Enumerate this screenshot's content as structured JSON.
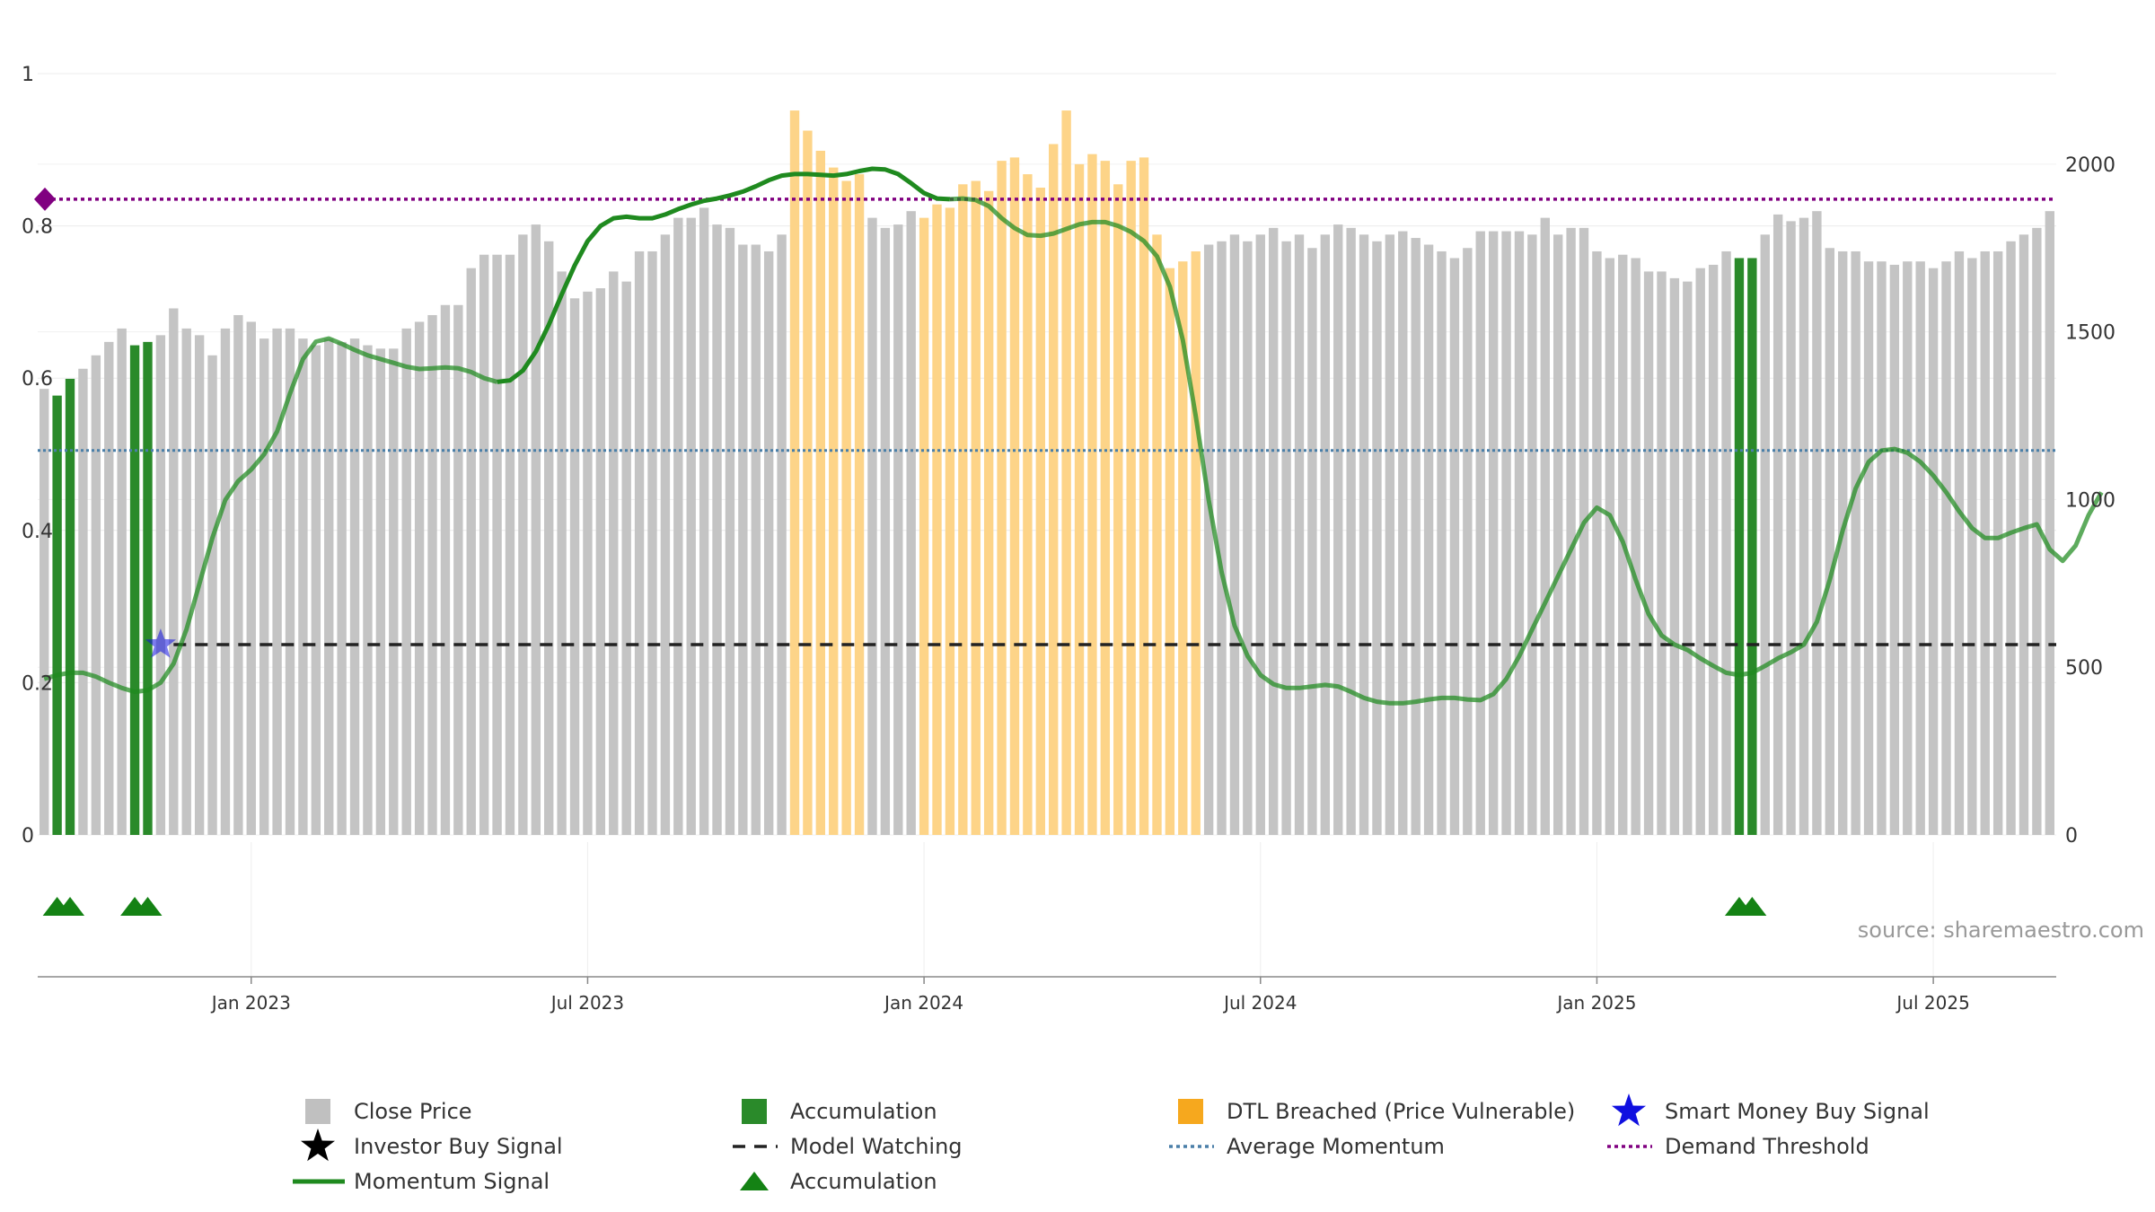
{
  "chart_data": {
    "type": "bar",
    "title": "",
    "source": "source: sharemaestro.com",
    "left_axis": {
      "ticks": [
        "0",
        "0.2",
        "0.4",
        "0.6",
        "0.8",
        "1"
      ],
      "ylim": [
        0,
        1
      ]
    },
    "right_axis": {
      "ticks": [
        "0",
        "500",
        "1000",
        "1500",
        "2000"
      ],
      "ylim": [
        0,
        2270
      ]
    },
    "x_ticks": [
      "Jan 2023",
      "Jul 2023",
      "Jan 2024",
      "Jul 2024",
      "Jan 2025",
      "Jul 2025"
    ],
    "x_tick_index": [
      16,
      42,
      68,
      94,
      120,
      146
    ],
    "prices": [
      1330,
      1310,
      1360,
      1390,
      1430,
      1470,
      1510,
      1460,
      1470,
      1490,
      1570,
      1510,
      1490,
      1430,
      1510,
      1550,
      1530,
      1480,
      1510,
      1510,
      1480,
      1460,
      1480,
      1470,
      1480,
      1460,
      1450,
      1450,
      1510,
      1530,
      1550,
      1580,
      1580,
      1690,
      1730,
      1730,
      1730,
      1790,
      1820,
      1770,
      1680,
      1600,
      1620,
      1630,
      1680,
      1650,
      1740,
      1740,
      1790,
      1840,
      1840,
      1870,
      1820,
      1810,
      1760,
      1760,
      1740,
      1790,
      2160,
      2100,
      2040,
      1990,
      1950,
      1970,
      1840,
      1810,
      1820,
      1860,
      1840,
      1880,
      1870,
      1940,
      1950,
      1920,
      2010,
      2020,
      1970,
      1930,
      2060,
      2160,
      2000,
      2030,
      2010,
      1940,
      2010,
      2020,
      1790,
      1690,
      1710,
      1740,
      1760,
      1770,
      1790,
      1770,
      1790,
      1810,
      1770,
      1790,
      1750,
      1790,
      1820,
      1810,
      1790,
      1770,
      1790,
      1800,
      1780,
      1760,
      1740,
      1720,
      1750,
      1800,
      1800,
      1800,
      1800,
      1790,
      1840,
      1790,
      1810,
      1810,
      1740,
      1720,
      1730,
      1720,
      1680,
      1680,
      1660,
      1650,
      1690,
      1700,
      1740,
      1720,
      1720,
      1790,
      1850,
      1830,
      1840,
      1860,
      1750,
      1740,
      1740,
      1710,
      1710,
      1700,
      1710,
      1710,
      1690,
      1710,
      1740,
      1720,
      1740,
      1740,
      1770,
      1790,
      1810,
      1860
    ],
    "bar_colors": {
      "close_price": "#c4c4c4",
      "accumulation": "#2a8a2a",
      "dtl_breached": "#fdd488"
    },
    "accumulation_bars": [
      1,
      2,
      7,
      8,
      131,
      132
    ],
    "dtl_breached_bars": [
      [
        58,
        63
      ],
      [
        68,
        89
      ]
    ],
    "momentum_signal": [
      0.205,
      0.21,
      0.213,
      0.213,
      0.208,
      0.2,
      0.193,
      0.188,
      0.19,
      0.2,
      0.225,
      0.27,
      0.33,
      0.39,
      0.44,
      0.465,
      0.48,
      0.5,
      0.53,
      0.58,
      0.625,
      0.648,
      0.652,
      0.645,
      0.637,
      0.63,
      0.625,
      0.62,
      0.615,
      0.612,
      0.613,
      0.614,
      0.613,
      0.608,
      0.6,
      0.595,
      0.597,
      0.61,
      0.635,
      0.67,
      0.71,
      0.748,
      0.78,
      0.8,
      0.81,
      0.812,
      0.81,
      0.81,
      0.815,
      0.822,
      0.828,
      0.833,
      0.836,
      0.84,
      0.845,
      0.852,
      0.86,
      0.866,
      0.868,
      0.868,
      0.867,
      0.866,
      0.868,
      0.872,
      0.875,
      0.874,
      0.868,
      0.856,
      0.843,
      0.836,
      0.835,
      0.836,
      0.834,
      0.826,
      0.81,
      0.797,
      0.788,
      0.787,
      0.79,
      0.796,
      0.802,
      0.805,
      0.805,
      0.8,
      0.792,
      0.78,
      0.76,
      0.72,
      0.65,
      0.55,
      0.44,
      0.345,
      0.275,
      0.235,
      0.21,
      0.198,
      0.193,
      0.193,
      0.195,
      0.197,
      0.195,
      0.188,
      0.18,
      0.175,
      0.173,
      0.173,
      0.175,
      0.178,
      0.18,
      0.18,
      0.178,
      0.177,
      0.185,
      0.205,
      0.235,
      0.27,
      0.305,
      0.34,
      0.375,
      0.41,
      0.43,
      0.42,
      0.385,
      0.335,
      0.29,
      0.262,
      0.25,
      0.243,
      0.232,
      0.222,
      0.213,
      0.21,
      0.213,
      0.222,
      0.232,
      0.24,
      0.25,
      0.28,
      0.335,
      0.4,
      0.455,
      0.49,
      0.505,
      0.507,
      0.502,
      0.49,
      0.472,
      0.45,
      0.425,
      0.403,
      0.39,
      0.39,
      0.397,
      0.403,
      0.408,
      0.375,
      0.36,
      0.38,
      0.42,
      0.45
    ],
    "momentum_opacity": {
      "full": [
        35,
        70
      ],
      "faded": 0.72
    },
    "model_watching": {
      "value": 0.25,
      "from_index": 10
    },
    "average_momentum": 0.505,
    "demand_threshold": 0.835,
    "smart_money_buy_signal": {
      "index": 9,
      "value": 0.25
    },
    "accumulation_markers": [
      1,
      2,
      7,
      8,
      131,
      132
    ],
    "legend": [
      "Close Price",
      "Accumulation",
      "DTL Breached (Price Vulnerable)",
      "Smart Money Buy Signal",
      "Investor Buy Signal",
      "Model Watching",
      "Average Momentum",
      "Demand Threshold",
      "Momentum Signal",
      "Accumulation"
    ],
    "colors": {
      "momentum": "#1f8a1f",
      "model_watching": "#222222",
      "average_momentum": "#4a7fa8",
      "demand_threshold": "#800080",
      "smart_money": "#1010e0",
      "investor": "#000000",
      "marker": "#148214",
      "legend_accumulation": "#2a8a2a",
      "legend_dtl": "#f6a81e",
      "legend_close": "#c0c0c0"
    }
  }
}
